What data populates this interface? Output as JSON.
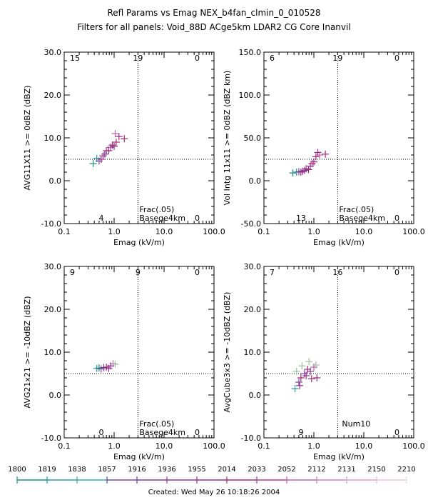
{
  "header": {
    "title": "Refl Params vs Emag    NEX_b4fan_clmin_0_010528",
    "subtitle": "Filters for all panels:  Void_88D ACge5km LDAR2 CG Core Inanvil"
  },
  "footer": {
    "created": "Created: Wed May 26 10:18:26 2004"
  },
  "colorbar": {
    "labels": [
      "1800",
      "1819",
      "1838",
      "1857",
      "1916",
      "1936",
      "1955",
      "2014",
      "2033",
      "2052",
      "2112",
      "2131",
      "2150",
      "2210"
    ],
    "colors": [
      "#1a8f7a",
      "#2a9a9a",
      "#3aa8a8",
      "#6a4aa0",
      "#7a3aa0",
      "#8a3a9a",
      "#9a2a8a",
      "#a02a70",
      "#b03a90",
      "#c060a8",
      "#d080c0",
      "#e0a0d0",
      "#e8c0e0",
      "#f0d8ec"
    ]
  },
  "chart_data": [
    {
      "type": "scatter",
      "ylabel": "AVG11X11 >= 0dBZ (dBZ)",
      "xlabel": "Emag (kV/m)",
      "xscale": "log",
      "xlim": [
        0.1,
        100.0
      ],
      "ylim": [
        -10.0,
        30.0
      ],
      "x_ticks": [
        "0.1",
        "1.0",
        "10.0",
        "100.0"
      ],
      "y_ticks": [
        "-10.0",
        "0.0",
        "10.0",
        "20.0",
        "30.0"
      ],
      "ref_x": 3.0,
      "ref_y": 5.0,
      "quadrant_counts": {
        "top_left": "15",
        "top_mid": "19",
        "top_right": "0",
        "bottom_mid": "4",
        "bottom_right": "0"
      },
      "annotations": [
        "Frac(.05)",
        "Basege4km"
      ],
      "points": [
        {
          "x": 0.38,
          "y": 4.0,
          "c": "#1a8f7a"
        },
        {
          "x": 0.45,
          "y": 5.2,
          "c": "#2a9a9a"
        },
        {
          "x": 0.5,
          "y": 4.6,
          "c": "#6a4aa0"
        },
        {
          "x": 0.55,
          "y": 5.0,
          "c": "#9a2a8a"
        },
        {
          "x": 0.6,
          "y": 5.8,
          "c": "#a02a70"
        },
        {
          "x": 0.65,
          "y": 6.2,
          "c": "#7a3aa0"
        },
        {
          "x": 0.7,
          "y": 7.0,
          "c": "#9a2a8a"
        },
        {
          "x": 0.78,
          "y": 7.0,
          "c": "#a02a70"
        },
        {
          "x": 0.85,
          "y": 7.8,
          "c": "#8a3a9a"
        },
        {
          "x": 0.92,
          "y": 8.3,
          "c": "#a02a70"
        },
        {
          "x": 1.0,
          "y": 8.0,
          "c": "#9a2a8a"
        },
        {
          "x": 1.05,
          "y": 11.0,
          "c": "#c060a8"
        },
        {
          "x": 1.1,
          "y": 9.0,
          "c": "#a02a70"
        },
        {
          "x": 1.25,
          "y": 10.3,
          "c": "#9a2a8a"
        },
        {
          "x": 1.6,
          "y": 9.8,
          "c": "#a02a70"
        }
      ]
    },
    {
      "type": "scatter",
      "ylabel": "Vol Intg 11x11 >= 0dBZ (dBZ km)",
      "xlabel": "Emag (kV/m)",
      "xscale": "log",
      "xlim": [
        0.1,
        100.0
      ],
      "ylim": [
        -50.0,
        150.0
      ],
      "x_ticks": [
        "0.1",
        "1.0",
        "10.0",
        "100.0"
      ],
      "y_ticks": [
        "-50.0",
        "0.0",
        "50.0",
        "100.0",
        "150.0"
      ],
      "ref_x": 3.0,
      "ref_y": 25.0,
      "quadrant_counts": {
        "top_left": "6",
        "top_mid": "19",
        "top_right": "0",
        "bottom_mid": "13",
        "bottom_right": "0"
      },
      "annotations": [
        "Frac(.05)",
        "Basege4km"
      ],
      "points": [
        {
          "x": 0.38,
          "y": 9.0,
          "c": "#1a8f7a"
        },
        {
          "x": 0.45,
          "y": 10.0,
          "c": "#2a9a9a"
        },
        {
          "x": 0.5,
          "y": 10.5,
          "c": "#6a4aa0"
        },
        {
          "x": 0.55,
          "y": 10.0,
          "c": "#9a2a8a"
        },
        {
          "x": 0.6,
          "y": 11.0,
          "c": "#a02a70"
        },
        {
          "x": 0.65,
          "y": 12.0,
          "c": "#7a3aa0"
        },
        {
          "x": 0.7,
          "y": 14.0,
          "c": "#9a2a8a"
        },
        {
          "x": 0.78,
          "y": 13.0,
          "c": "#a02a70"
        },
        {
          "x": 0.85,
          "y": 17.0,
          "c": "#8a3a9a"
        },
        {
          "x": 0.92,
          "y": 20.0,
          "c": "#a02a70"
        },
        {
          "x": 1.0,
          "y": 22.0,
          "c": "#9a2a8a"
        },
        {
          "x": 1.1,
          "y": 28.0,
          "c": "#a02a70"
        },
        {
          "x": 1.2,
          "y": 33.0,
          "c": "#9a2a8a"
        },
        {
          "x": 1.3,
          "y": 30.0,
          "c": "#c060a8"
        },
        {
          "x": 1.7,
          "y": 31.0,
          "c": "#a02a70"
        }
      ]
    },
    {
      "type": "scatter",
      "ylabel": "AVG21x21 >= -10dBZ (dBZ)",
      "xlabel": "Emag (kV/m)",
      "xscale": "log",
      "xlim": [
        0.1,
        100.0
      ],
      "ylim": [
        -10.0,
        30.0
      ],
      "x_ticks": [
        "0.1",
        "1.0",
        "10.0",
        "100.0"
      ],
      "y_ticks": [
        "-10.0",
        "0.0",
        "10.0",
        "20.0",
        "30.0"
      ],
      "ref_x": 3.0,
      "ref_y": 5.0,
      "quadrant_counts": {
        "top_left": "9",
        "top_mid": "9",
        "top_right": "0",
        "bottom_mid": "0",
        "bottom_right": "0"
      },
      "annotations": [
        "Frac(.05)",
        "Basege4km"
      ],
      "points": [
        {
          "x": 0.45,
          "y": 6.2,
          "c": "#2a9a9a"
        },
        {
          "x": 0.5,
          "y": 6.3,
          "c": "#1a8f7a"
        },
        {
          "x": 0.55,
          "y": 6.1,
          "c": "#6a4aa0"
        },
        {
          "x": 0.62,
          "y": 6.4,
          "c": "#7a3aa0"
        },
        {
          "x": 0.7,
          "y": 6.5,
          "c": "#a02a70"
        },
        {
          "x": 0.78,
          "y": 6.2,
          "c": "#9a2a8a"
        },
        {
          "x": 0.85,
          "y": 6.8,
          "c": "#8a3a9a"
        },
        {
          "x": 0.95,
          "y": 7.3,
          "c": "#c060a8"
        },
        {
          "x": 1.05,
          "y": 7.2,
          "c": "#a0c0a0"
        }
      ]
    },
    {
      "type": "scatter",
      "ylabel": "AvgCube3x3 >= -10dBZ (dBZ)",
      "xlabel": "Emag (kV/m)",
      "xscale": "log",
      "xlim": [
        0.1,
        100.0
      ],
      "ylim": [
        -10.0,
        30.0
      ],
      "x_ticks": [
        "0.1",
        "1.0",
        "10.0",
        "100.0"
      ],
      "y_ticks": [
        "-10.0",
        "0.0",
        "10.0",
        "20.0",
        "30.0"
      ],
      "ref_x": 3.0,
      "ref_y": 5.0,
      "quadrant_counts": {
        "top_left": "7",
        "top_mid": "16",
        "top_right": "0",
        "bottom_mid": "9",
        "bottom_right": "0"
      },
      "annotations": [
        "Num10"
      ],
      "points": [
        {
          "x": 0.42,
          "y": 1.5,
          "c": "#2a9a9a"
        },
        {
          "x": 0.45,
          "y": 5.5,
          "c": "#a0c0a0"
        },
        {
          "x": 0.5,
          "y": 3.0,
          "c": "#6a4aa0"
        },
        {
          "x": 0.52,
          "y": 2.2,
          "c": "#9a2a8a"
        },
        {
          "x": 0.55,
          "y": 4.0,
          "c": "#a02a70"
        },
        {
          "x": 0.58,
          "y": 6.8,
          "c": "#a0c0a0"
        },
        {
          "x": 0.65,
          "y": 5.0,
          "c": "#7a3aa0"
        },
        {
          "x": 0.7,
          "y": 4.5,
          "c": "#9a2a8a"
        },
        {
          "x": 0.75,
          "y": 6.0,
          "c": "#a02a70"
        },
        {
          "x": 0.8,
          "y": 7.8,
          "c": "#a0c0a0"
        },
        {
          "x": 0.85,
          "y": 5.5,
          "c": "#8a3a9a"
        },
        {
          "x": 0.9,
          "y": 3.8,
          "c": "#a02a70"
        },
        {
          "x": 1.0,
          "y": 6.5,
          "c": "#c060a8"
        },
        {
          "x": 1.1,
          "y": 7.0,
          "c": "#a0c0a0"
        },
        {
          "x": 1.15,
          "y": 4.0,
          "c": "#9a2a8a"
        }
      ]
    }
  ]
}
